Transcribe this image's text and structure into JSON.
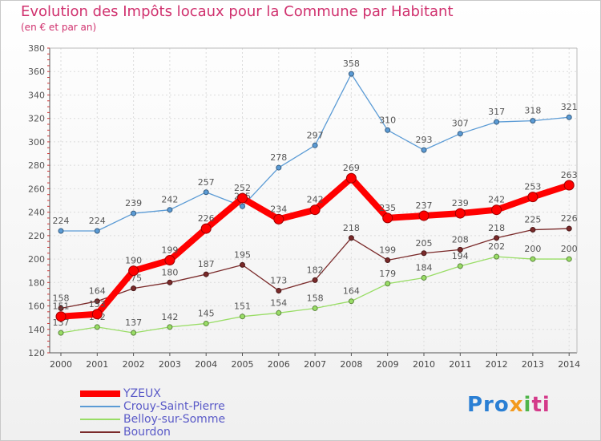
{
  "header": {
    "title": "Evolution des Impôts locaux pour la Commune par Habitant",
    "subtitle": "(en € et par an)"
  },
  "brand": {
    "p1": "Pro",
    "p2": "x",
    "p3": "i",
    "p4": "ti"
  },
  "chart_data": {
    "type": "line",
    "title": "Evolution des Impôts locaux pour la Commune par Habitant",
    "subtitle": "(en € et par an)",
    "xlabel": "",
    "ylabel": "",
    "x": [
      "2000",
      "2001",
      "2002",
      "2003",
      "2004",
      "2005",
      "2006",
      "2007",
      "2008",
      "2009",
      "2010",
      "2011",
      "2012",
      "2013",
      "2014"
    ],
    "ylim": [
      120,
      380
    ],
    "yticks": [
      120,
      140,
      160,
      180,
      200,
      220,
      240,
      260,
      280,
      300,
      320,
      340,
      360,
      380
    ],
    "grid": true,
    "legend_position": "bottom-left",
    "series": [
      {
        "name": "YZEUX",
        "color": "#ff0000",
        "highlight": true,
        "values": [
          151,
          153,
          190,
          199,
          226,
          252,
          234,
          242,
          269,
          235,
          237,
          239,
          242,
          253,
          263
        ]
      },
      {
        "name": "Crouy-Saint-Pierre",
        "color": "#5b9bd5",
        "highlight": false,
        "values": [
          224,
          224,
          239,
          242,
          257,
          245,
          278,
          297,
          358,
          310,
          293,
          307,
          317,
          318,
          321
        ]
      },
      {
        "name": "Belloy-sur-Somme",
        "color": "#99dd66",
        "highlight": false,
        "values": [
          137,
          142,
          137,
          142,
          145,
          151,
          154,
          158,
          164,
          179,
          184,
          194,
          202,
          200,
          200
        ]
      },
      {
        "name": "Bourdon",
        "color": "#7a2a2a",
        "highlight": false,
        "values": [
          158,
          164,
          175,
          180,
          187,
          195,
          173,
          182,
          218,
          199,
          205,
          208,
          218,
          225,
          226
        ]
      }
    ]
  }
}
